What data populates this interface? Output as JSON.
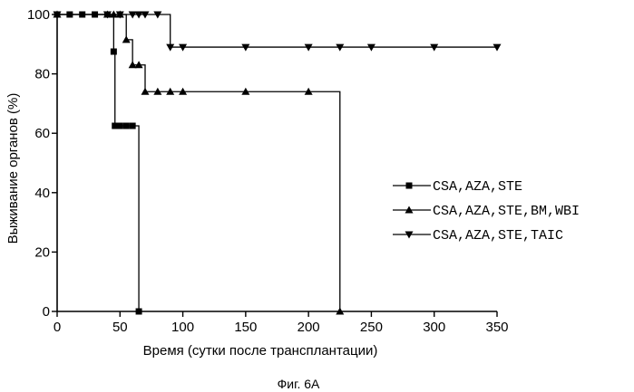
{
  "chart_data": {
    "type": "line",
    "step": true,
    "xlabel": "Время (сутки после трансплантации)",
    "ylabel": "Выживание органов (%)",
    "caption": "Фиг. 6A",
    "xlim": [
      0,
      350
    ],
    "ylim": [
      0,
      100
    ],
    "xticks": [
      0,
      50,
      100,
      150,
      200,
      250,
      300,
      350
    ],
    "yticks": [
      0,
      20,
      40,
      60,
      80,
      100
    ],
    "grid": false,
    "legend_position": "right",
    "series": [
      {
        "name": "CSA,AZA,STE",
        "marker": "square",
        "x": [
          0,
          10,
          20,
          30,
          40,
          45,
          46,
          48,
          50,
          55,
          60,
          65
        ],
        "y": [
          100,
          100,
          100,
          100,
          100,
          87.5,
          62.5,
          62.5,
          62.5,
          62.5,
          62.5,
          0
        ]
      },
      {
        "name": "CSA,AZA,STE,BM,WBI",
        "marker": "triangle-up",
        "x": [
          0,
          40,
          45,
          50,
          55,
          60,
          65,
          70,
          80,
          90,
          100,
          150,
          200,
          225
        ],
        "y": [
          100,
          100,
          100,
          100,
          91.5,
          83,
          83,
          74,
          74,
          74,
          74,
          74,
          74,
          0
        ]
      },
      {
        "name": "CSA,AZA,STE,TAIC",
        "marker": "triangle-down",
        "x": [
          0,
          40,
          50,
          60,
          65,
          70,
          80,
          90,
          100,
          150,
          200,
          225,
          250,
          300,
          350
        ],
        "y": [
          100,
          100,
          100,
          100,
          100,
          100,
          100,
          89,
          89,
          89,
          89,
          89,
          89,
          89,
          89
        ]
      }
    ]
  }
}
